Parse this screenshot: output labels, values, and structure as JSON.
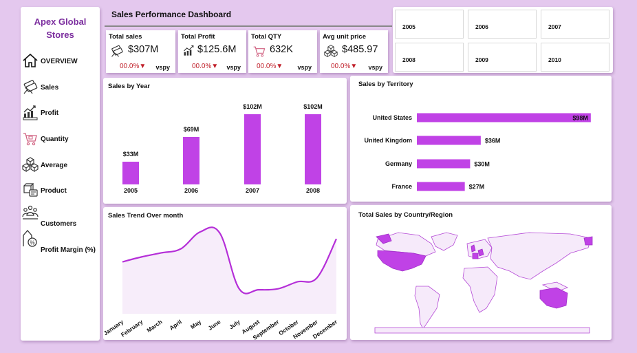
{
  "brand": {
    "line1": "Apex Global",
    "line2": "Stores"
  },
  "nav": [
    {
      "label": "OVERVIEW",
      "icon": "home-icon"
    },
    {
      "label": "Sales",
      "icon": "money-icon"
    },
    {
      "label": "Profit",
      "icon": "profit-icon"
    },
    {
      "label": "Quantity",
      "icon": "cart-icon"
    },
    {
      "label": "Average",
      "icon": "boxes-icon"
    },
    {
      "label": "Product",
      "icon": "product-icon"
    },
    {
      "label": "Customers",
      "icon": "customers-icon"
    },
    {
      "label": "Profit Margin (%)",
      "icon": "percent-growth-icon"
    }
  ],
  "dashboard_title": "Sales Performance Dashboard",
  "kpis": [
    {
      "title": "Total sales",
      "value": "$307M",
      "change": "00.0%▼",
      "tag": "vspy",
      "icon": "money-icon"
    },
    {
      "title": "Total Profit",
      "value": "$125.6M",
      "change": "00.0%▼",
      "tag": "vspy",
      "icon": "profit-icon"
    },
    {
      "title": "Total QTY",
      "value": "632K",
      "change": "00.0%▼",
      "tag": "vspy",
      "icon": "cart-icon"
    },
    {
      "title": "Avg unit price",
      "value": "$485.97",
      "change": "00.0%▼",
      "tag": "vspy",
      "icon": "boxes-icon"
    }
  ],
  "years": [
    "2005",
    "2006",
    "2007",
    "2008",
    "2009",
    "2010"
  ],
  "colors": {
    "accent": "#c042e6",
    "brand": "#7b2d9e",
    "negative": "#c0202a"
  },
  "cards": {
    "sales_by_year": "Sales by Year",
    "sales_by_territory": "Sales by Territory",
    "sales_trend": "Sales Trend Over month",
    "sales_by_country": "Total Sales by Country/Region"
  },
  "chart_data": [
    {
      "type": "bar",
      "title": "Sales by Year",
      "categories": [
        "2005",
        "2006",
        "2007",
        "2008"
      ],
      "values": [
        33,
        69,
        102,
        102
      ],
      "labels": [
        "$33M",
        "$69M",
        "$102M",
        "$102M"
      ],
      "ylim": [
        0,
        110
      ]
    },
    {
      "type": "bar",
      "orientation": "horizontal",
      "title": "Sales by Territory",
      "categories": [
        "United States",
        "United Kingdom",
        "Germany",
        "France"
      ],
      "values": [
        98,
        36,
        30,
        27
      ],
      "labels": [
        "$98M",
        "$36M",
        "$30M",
        "$27M"
      ],
      "xlim": [
        0,
        100
      ]
    },
    {
      "type": "area",
      "title": "Sales Trend Over month",
      "categories": [
        "January",
        "February",
        "March",
        "April",
        "May",
        "June",
        "July",
        "August",
        "September",
        "October",
        "November",
        "December"
      ],
      "values": [
        30,
        35,
        39,
        43,
        60,
        59,
        3,
        2,
        3,
        10,
        14,
        53
      ],
      "ylim": [
        0,
        60
      ]
    }
  ]
}
